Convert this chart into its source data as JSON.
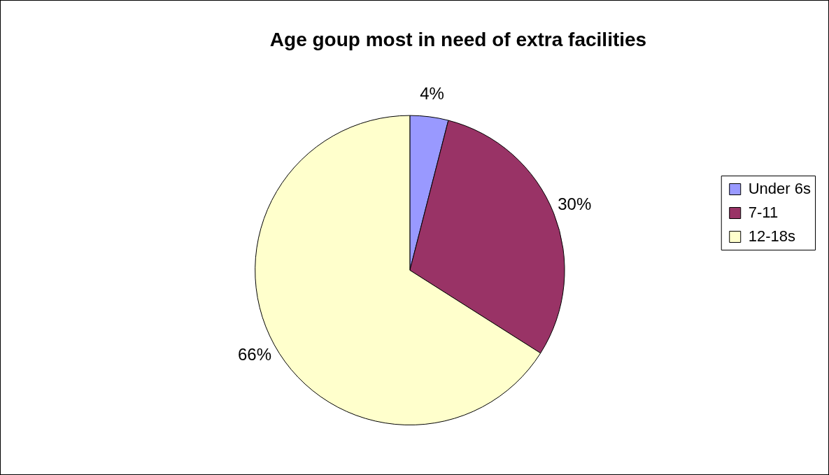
{
  "chart_data": {
    "type": "pie",
    "title": "Age goup most in need of extra facilities",
    "categories": [
      "Under 6s",
      "7-11",
      "12-18s"
    ],
    "values": [
      4,
      30,
      66
    ],
    "colors": [
      "#9999ff",
      "#993366",
      "#ffffcc"
    ],
    "value_labels": [
      "4%",
      "30%",
      "66%"
    ],
    "legend": "right"
  }
}
